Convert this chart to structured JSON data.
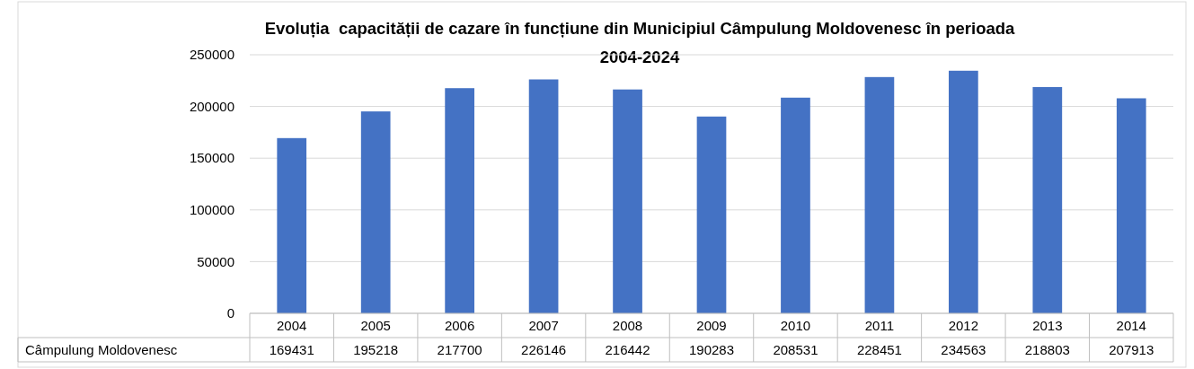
{
  "chart_data": {
    "type": "bar",
    "title": "Evoluția  capacității de cazare în funcțiune din Municipiul Câmpulung Moldovenesc în perioada 2004-2024",
    "categories": [
      "2004",
      "2005",
      "2006",
      "2007",
      "2008",
      "2009",
      "2010",
      "2011",
      "2012",
      "2013",
      "2014"
    ],
    "series": [
      {
        "name": "Câmpulung Moldovenesc",
        "color": "#4472c4",
        "values": [
          169431,
          195218,
          217700,
          226146,
          216442,
          190283,
          208531,
          228451,
          234563,
          218803,
          207913
        ]
      }
    ],
    "ylim": [
      0,
      250000
    ],
    "yticks": [
      0,
      50000,
      100000,
      150000,
      200000,
      250000
    ],
    "grid": "y",
    "data_labels": true
  }
}
